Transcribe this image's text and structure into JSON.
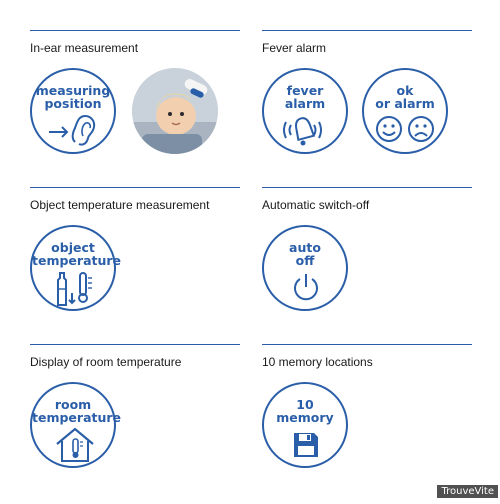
{
  "features": [
    {
      "title": "In-ear measurement",
      "badges": [
        {
          "label_lines": [
            "measuring",
            "position"
          ],
          "icon": "ear-icon"
        },
        {
          "photo": "child-ear-photo"
        }
      ]
    },
    {
      "title": "Fever alarm",
      "badges": [
        {
          "label_lines": [
            "fever",
            "alarm"
          ],
          "icon": "bell-icon"
        },
        {
          "label_lines": [
            "ok",
            "or alarm"
          ],
          "icon": "smiley-faces-icon"
        }
      ]
    },
    {
      "title": "Object temperature measurement",
      "badges": [
        {
          "label_lines": [
            "object",
            "temperature"
          ],
          "icon": "bottle-thermometer-icon"
        }
      ]
    },
    {
      "title": "Automatic switch-off",
      "badges": [
        {
          "label_lines": [
            "auto",
            "off"
          ],
          "icon": "power-icon"
        }
      ]
    },
    {
      "title": "Display of room temperature",
      "badges": [
        {
          "label_lines": [
            "room",
            "temperature"
          ],
          "icon": "house-thermometer-icon"
        }
      ]
    },
    {
      "title": "10 memory locations",
      "badges": [
        {
          "label_lines": [
            "10",
            "memory"
          ],
          "icon": "floppy-disk-icon"
        }
      ]
    }
  ],
  "watermark": "TrouveVite",
  "colors": {
    "accent": "#2a5ea8",
    "text": "#1a1a1a"
  }
}
